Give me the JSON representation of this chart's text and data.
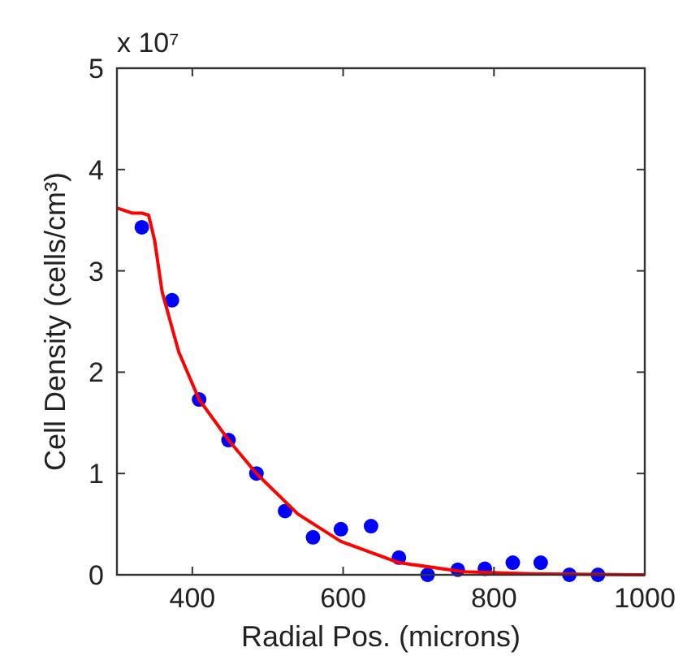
{
  "chart_data": {
    "type": "scatter",
    "xlabel": "Radial Pos. (microns)",
    "ylabel": "Cell Density (cells/cm³)",
    "annotations": [
      "x 10⁷"
    ],
    "xlim": [
      300,
      1000
    ],
    "xticks": [
      400,
      600,
      800,
      1000
    ],
    "ylim": [
      0,
      5
    ],
    "yticks": [
      0,
      1,
      2,
      3,
      4,
      5
    ],
    "grid": false,
    "series": [
      {
        "color": "#0000ff",
        "marker": "circle",
        "x": [
          333,
          373,
          409,
          448,
          485,
          523,
          560,
          597,
          637,
          674,
          712,
          752,
          788,
          825,
          862,
          900,
          938
        ],
        "values": [
          3.43,
          2.71,
          1.73,
          1.33,
          1.0,
          0.63,
          0.37,
          0.45,
          0.48,
          0.17,
          0.0,
          0.05,
          0.06,
          0.12,
          0.12,
          0.0,
          0.0
        ]
      },
      {
        "type": "line",
        "color": "#ff0000",
        "marker": "none",
        "line_style": "solid",
        "x": [
          300,
          320,
          333,
          342,
          350,
          360,
          382,
          409,
          448,
          485,
          540,
          597,
          674,
          760,
          850,
          1000
        ],
        "values": [
          3.62,
          3.57,
          3.57,
          3.55,
          3.3,
          2.79,
          2.2,
          1.73,
          1.33,
          1.0,
          0.6,
          0.33,
          0.12,
          0.03,
          0.01,
          0.0
        ]
      }
    ]
  }
}
